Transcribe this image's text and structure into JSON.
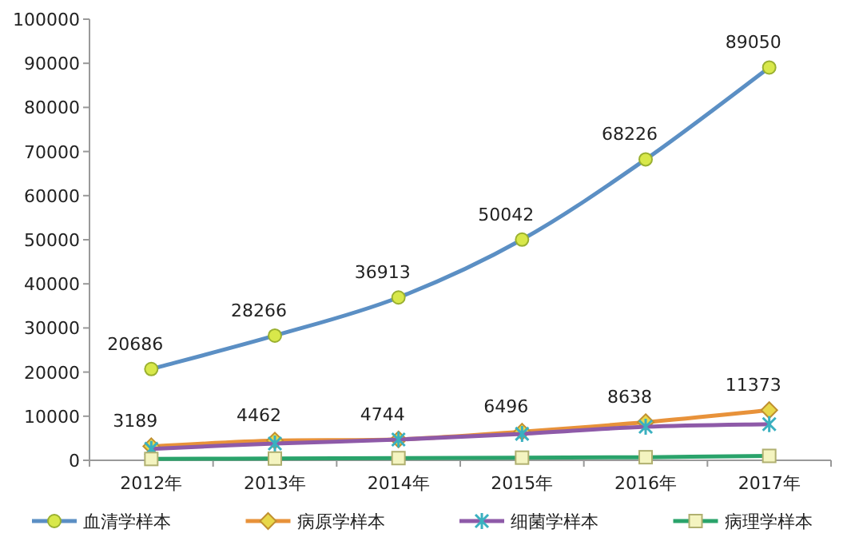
{
  "chart_data": {
    "type": "line",
    "categories": [
      "2012年",
      "2013年",
      "2014年",
      "2015年",
      "2016年",
      "2017年"
    ],
    "ylim": [
      0,
      100000
    ],
    "yticks": [
      0,
      10000,
      20000,
      30000,
      40000,
      50000,
      60000,
      70000,
      80000,
      90000,
      100000
    ],
    "legend": "bottom",
    "grid": false,
    "series": [
      {
        "name": "血清学样本",
        "color": "#5b8fc4",
        "marker": "circle",
        "values": [
          20686,
          28266,
          36913,
          50042,
          68226,
          89050
        ],
        "value_labels": [
          "20686",
          "28266",
          "36913",
          "50042",
          "68226",
          "89050"
        ]
      },
      {
        "name": "病原学样本",
        "color": "#e8923a",
        "marker": "diamond",
        "values": [
          3189,
          4462,
          4744,
          6496,
          8638,
          11373
        ],
        "value_labels": [
          "3189",
          "4462",
          "4744",
          "6496",
          "8638",
          "11373"
        ]
      },
      {
        "name": "细菌学样本",
        "color": "#8e5aa8",
        "marker": "cross",
        "values": [
          2600,
          3800,
          4700,
          6000,
          7600,
          8200
        ]
      },
      {
        "name": "病理学样本",
        "color": "#2aa36b",
        "marker": "square",
        "values": [
          300,
          400,
          500,
          600,
          700,
          1000
        ]
      }
    ]
  }
}
